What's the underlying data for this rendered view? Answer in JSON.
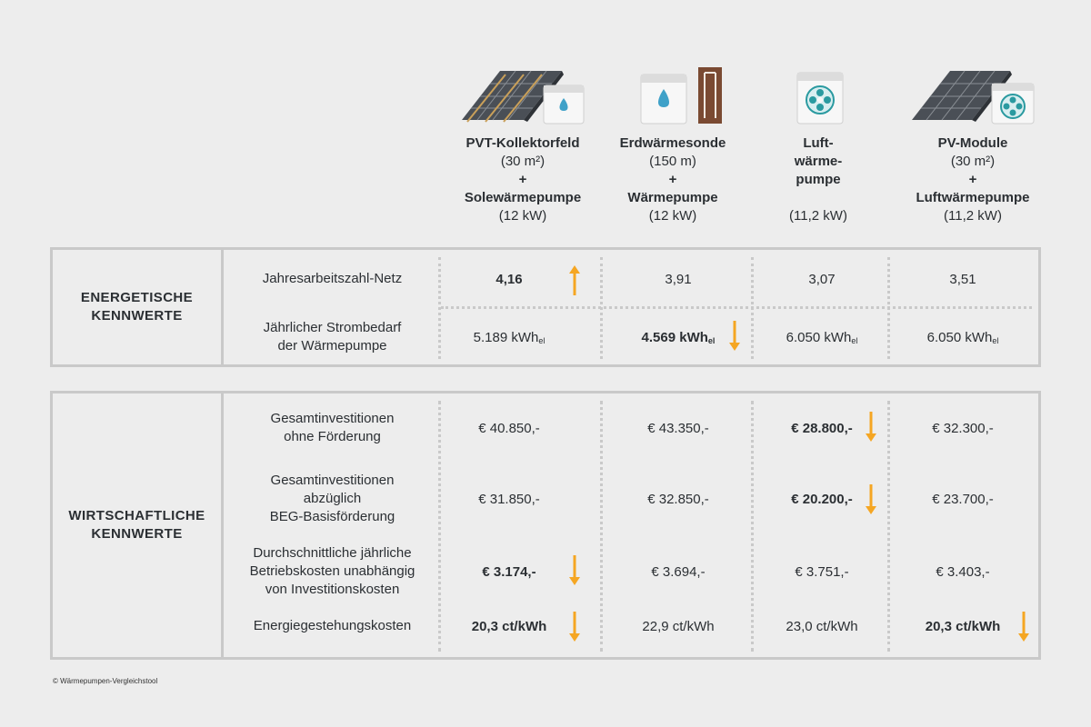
{
  "columns": [
    {
      "line1": "PVT-Kollektorfeld",
      "line2": "(30 m²)",
      "line3": "+",
      "line4": "Solewärmepumpe",
      "line5": "(12 kW)",
      "icon": "pvt-collector-brine-pump-icon"
    },
    {
      "line1": "Erdwärmesonde",
      "line2": "(150 m)",
      "line3": "+",
      "line4": "Wärmepumpe",
      "line5": "(12 kW)",
      "icon": "ground-probe-heat-pump-icon"
    },
    {
      "line1": "Luft-",
      "line2": "wärme-",
      "line3": "pumpe",
      "line4": "",
      "line5": "(11,2 kW)",
      "icon": "air-heat-pump-icon"
    },
    {
      "line1": "PV-Module",
      "line2": "(30 m²)",
      "line3": "+",
      "line4": "Luftwärmepumpe",
      "line5": "(11,2 kW)",
      "icon": "pv-module-air-pump-icon"
    }
  ],
  "energetic": {
    "label_line1": "ENERGETISCHE",
    "label_line2": "KENNWERTE",
    "rows": [
      {
        "label1": "Jahresarbeitszahl-Netz",
        "label2": "",
        "values": [
          "4,16",
          "3,91",
          "3,07",
          "3,51"
        ],
        "unit": ""
      },
      {
        "label1": "Jährlicher Strombedarf",
        "label2": "der Wärmepumpe",
        "values": [
          "5.189 kWh",
          "4.569 kWh",
          "6.050 kWh",
          "6.050 kWh"
        ],
        "unit": "el"
      }
    ]
  },
  "economic": {
    "label_line1": "WIRTSCHAFTLICHE",
    "label_line2": "KENNWERTE",
    "rows": [
      {
        "label1": "Gesamtinvestitionen",
        "label2": "ohne Förderung",
        "label3": "",
        "values": [
          "€ 40.850,-",
          "€ 43.350,-",
          "€ 28.800,-",
          "€ 32.300,-"
        ]
      },
      {
        "label1": "Gesamtinvestitionen",
        "label2": "abzüglich",
        "label3": "BEG-Basisförderung",
        "values": [
          "€ 31.850,-",
          "€ 32.850,-",
          "€ 20.200,-",
          "€ 23.700,-"
        ]
      },
      {
        "label1": "Durchschnittliche jährliche",
        "label2": "Betriebskosten unabhängig",
        "label3": "von Investitionskosten",
        "values": [
          "€ 3.174,-",
          "€ 3.694,-",
          "€ 3.751,-",
          "€ 3.403,-"
        ]
      },
      {
        "label1": "Energiegestehungskosten",
        "label2": "",
        "label3": "",
        "values": [
          "20,3 ct/kWh",
          "22,9 ct/kWh",
          "23,0 ct/kWh",
          "20,3 ct/kWh"
        ]
      }
    ]
  },
  "colors": {
    "accent_arrow": "#f5a623",
    "border": "#c9c9c9",
    "text": "#2b2f33",
    "background": "#ededed"
  },
  "copyright": "© Wärmepumpen-Vergleichstool"
}
